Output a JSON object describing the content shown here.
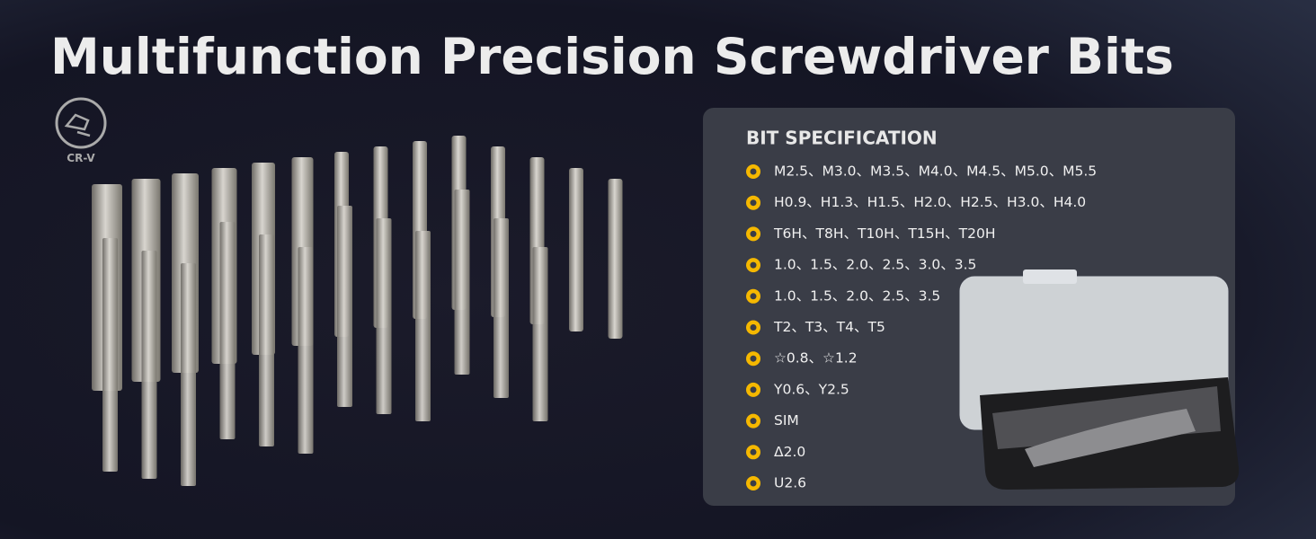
{
  "header": {
    "title": "Multifunction Precision Screwdriver Bits",
    "badge": "CR-V"
  },
  "spec": {
    "heading": "BIT SPECIFICATION",
    "items": [
      "M2.5、M3.0、M3.5、M4.0、M4.5、M5.0、M5.5",
      "H0.9、H1.3、H1.5、H2.0、H2.5、H3.0、H4.0",
      "T6H、T8H、T10H、T15H、T20H",
      "1.0、1.5、2.0、2.5、3.0、3.5",
      "1.0、1.5、2.0、2.5、3.5",
      "T2、T3、T4、T5",
      "☆0.8、☆1.2",
      "Y0.6、Y2.5",
      "SIM",
      "Δ2.0",
      "U2.6"
    ]
  }
}
